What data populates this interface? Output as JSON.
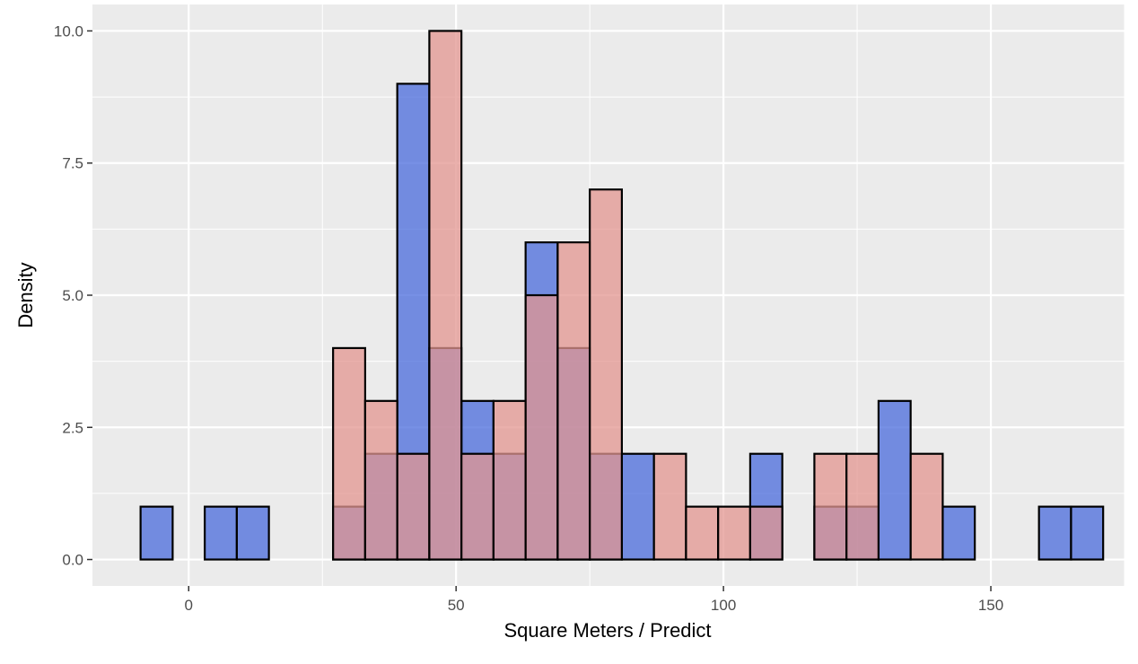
{
  "chart_data": {
    "type": "bar",
    "title": "",
    "xlabel": "Square Meters / Predict",
    "ylabel": "Density",
    "xlim": [
      -18,
      175
    ],
    "ylim": [
      -0.5,
      10.5
    ],
    "x_ticks": [
      0,
      50,
      100,
      150
    ],
    "x_tick_labels": [
      "0",
      "50",
      "100",
      "150"
    ],
    "y_ticks": [
      0,
      2.5,
      5,
      7.5,
      10
    ],
    "y_tick_labels": [
      "0.0",
      "2.5",
      "5.0",
      "7.5",
      "10.0"
    ],
    "grid": true,
    "legend": "none",
    "bin_width": 6,
    "bin_starts": [
      -9,
      -3,
      3,
      9,
      15,
      21,
      27,
      33,
      39,
      45,
      51,
      57,
      63,
      69,
      75,
      81,
      87,
      93,
      99,
      105,
      111,
      117,
      123,
      129,
      135,
      141,
      147,
      153,
      159,
      165
    ],
    "series": [
      {
        "color": "#4a6bdc",
        "values": [
          1,
          0,
          1,
          1,
          0,
          0,
          1,
          2,
          9,
          4,
          3,
          2,
          6,
          4,
          2,
          2,
          0,
          0,
          0,
          2,
          0,
          1,
          1,
          3,
          0,
          1,
          0,
          0,
          1,
          1
        ]
      },
      {
        "color": "#e39590",
        "values": [
          0,
          0,
          0,
          0,
          0,
          0,
          4,
          3,
          2,
          10,
          2,
          3,
          5,
          6,
          7,
          0,
          2,
          1,
          1,
          1,
          0,
          2,
          2,
          0,
          2,
          0,
          0,
          0,
          0,
          0
        ]
      }
    ],
    "colors": {
      "panel": "#ebebeb",
      "grid": "#ffffff",
      "outline": "#000000"
    }
  }
}
